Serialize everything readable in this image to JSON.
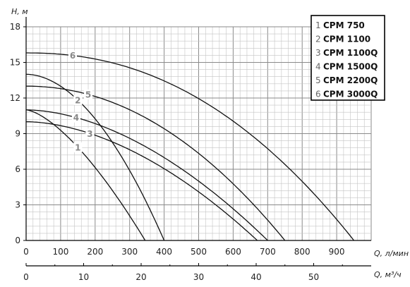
{
  "chart_data": {
    "type": "line",
    "title": "",
    "ylabel": "H, м",
    "xlabel": "Q, л/мин",
    "x2label": "Q, м³/ч",
    "ylim": [
      0,
      18
    ],
    "xlim": [
      0,
      1000
    ],
    "yticks": [
      "0",
      "3",
      "6",
      "9",
      "12",
      "15",
      "18"
    ],
    "xticks": [
      "0",
      "100",
      "200",
      "300",
      "400",
      "500",
      "600",
      "700",
      "800",
      "900"
    ],
    "x2ticks": [
      "0",
      "10",
      "20",
      "30",
      "40",
      "50"
    ],
    "x2_factor": 16.6667,
    "grid": true,
    "legend_position": "top-right",
    "series": [
      {
        "name": "CPM 750",
        "index": "1",
        "H0": 11.0,
        "Qmax": 345,
        "n": 1.5,
        "label_at_x": 150
      },
      {
        "name": "CPM 1100",
        "index": "2",
        "H0": 14.0,
        "Qmax": 400,
        "n": 1.9,
        "label_at_x": 150
      },
      {
        "name": "CPM 1100Q",
        "index": "3",
        "H0": 10.0,
        "Qmax": 670,
        "n": 1.8,
        "label_at_x": 185
      },
      {
        "name": "CPM 1500Q",
        "index": "4",
        "H0": 11.0,
        "Qmax": 700,
        "n": 1.8,
        "label_at_x": 145
      },
      {
        "name": "CPM 2200Q",
        "index": "5",
        "H0": 13.0,
        "Qmax": 750,
        "n": 2.05,
        "label_at_x": 180
      },
      {
        "name": "CPM 3000Q",
        "index": "6",
        "H0": 15.8,
        "Qmax": 950,
        "n": 2.2,
        "label_at_x": 135
      }
    ]
  }
}
